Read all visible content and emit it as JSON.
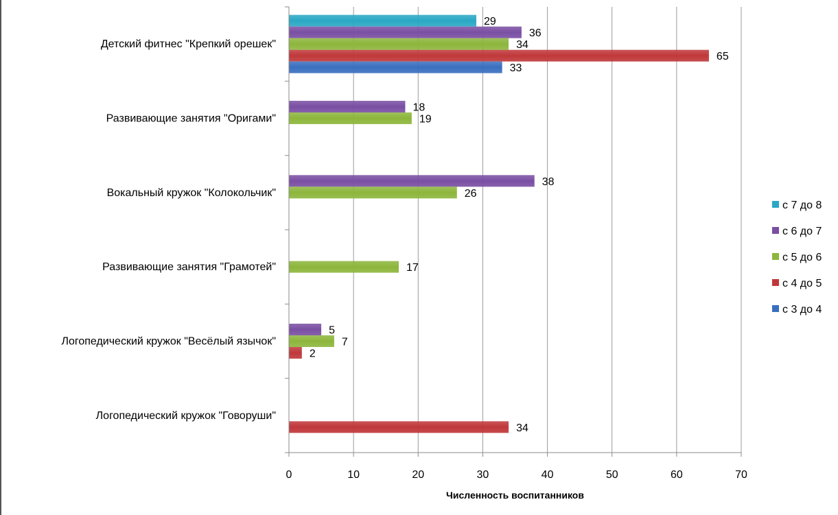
{
  "chart_data": {
    "type": "bar",
    "orientation": "horizontal",
    "categories": [
      "Детский фитнес \"Крепкий орешек\"",
      "Развивающие занятия \"Оригами\"",
      "Вокальный кружок \"Колокольчик\"",
      "Развивающие занятия \"Грамотей\"",
      "Логопедический кружок \"Весёлый язычок\"",
      "Логопедический кружок \"Говоруши\""
    ],
    "series": [
      {
        "name": "с 7 до 8",
        "color": "#2aa8c4",
        "values": [
          29,
          null,
          null,
          null,
          null,
          null
        ]
      },
      {
        "name": "с 6 до 7",
        "color": "#7a4fa3",
        "values": [
          36,
          18,
          38,
          null,
          5,
          null
        ]
      },
      {
        "name": "с 5 до 6",
        "color": "#8db63c",
        "values": [
          34,
          19,
          26,
          17,
          7,
          null
        ]
      },
      {
        "name": "с 4 до 5",
        "color": "#c0383a",
        "values": [
          65,
          null,
          null,
          null,
          2,
          34
        ]
      },
      {
        "name": "с 3 до 4",
        "color": "#3a6fbf",
        "values": [
          33,
          null,
          null,
          null,
          null,
          null
        ]
      }
    ],
    "xlabel": "Численность воспитанников",
    "ylabel": "",
    "xlim": [
      0,
      70
    ],
    "xticks": [
      0,
      10,
      20,
      30,
      40,
      50,
      60,
      70
    ],
    "grid": true,
    "legend": "right"
  }
}
